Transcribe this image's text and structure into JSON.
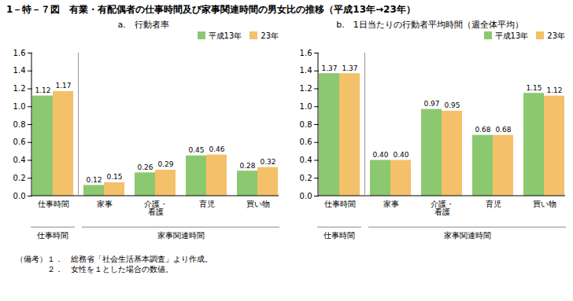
{
  "title": "1－特－７図　有業・有配偶者の仕事時間及び家事関連時間の男女比の推移（平成13年→23年）",
  "chart_data": [
    {
      "type": "bar",
      "subtitle": "a.　行動者率",
      "categories": [
        "仕事時間",
        "家事",
        "介護・\n看護",
        "育児",
        "買い物"
      ],
      "groups": [
        {
          "name": "仕事時間",
          "categories": [
            "仕事時間"
          ]
        },
        {
          "name": "家事関連時間",
          "categories": [
            "家事",
            "介護・\n看護",
            "育児",
            "買い物"
          ]
        }
      ],
      "series": [
        {
          "name": "平成13年",
          "color": "#8cc870",
          "values": [
            1.12,
            0.12,
            0.26,
            0.45,
            0.28
          ],
          "value_labels": [
            "1.12",
            "0.12",
            "0.26",
            "0.45",
            "0.28"
          ]
        },
        {
          "name": "23年",
          "color": "#f5c06a",
          "values": [
            1.17,
            0.15,
            0.29,
            0.46,
            0.32
          ],
          "value_labels": [
            "1.17",
            "0.15",
            "0.29",
            "0.46",
            "0.32"
          ]
        }
      ],
      "ylim": [
        0.0,
        1.6
      ],
      "yticks": [
        {
          "value": 0,
          "label": "0.0"
        },
        0.2,
        0.4,
        0.6,
        0.8,
        {
          "value": 1,
          "label": "1.0"
        },
        1.2,
        1.4,
        1.6
      ],
      "data_labels": true,
      "legend": "upper right",
      "grid": false
    },
    {
      "type": "bar",
      "subtitle": "b.　1日当たりの行動者平均時間（週全体平均）",
      "categories": [
        "仕事時間",
        "家事",
        "介護・\n看護",
        "育児",
        "買い物"
      ],
      "groups": [
        {
          "name": "仕事時間",
          "categories": [
            "仕事時間"
          ]
        },
        {
          "name": "家事関連時間",
          "categories": [
            "家事",
            "介護・\n看護",
            "育児",
            "買い物"
          ]
        }
      ],
      "series": [
        {
          "name": "平成13年",
          "color": "#8cc870",
          "values": [
            1.37,
            0.4,
            0.97,
            0.68,
            1.15
          ],
          "value_labels": [
            "1.37",
            "0.40",
            "0.97",
            "0.68",
            "1.15"
          ]
        },
        {
          "name": "23年",
          "color": "#f5c06a",
          "values": [
            1.37,
            0.4,
            0.95,
            0.68,
            1.12
          ],
          "value_labels": [
            "1.37",
            "0.40",
            "0.95",
            "0.68",
            "1.12"
          ]
        }
      ],
      "ylim": [
        0.0,
        1.6
      ],
      "yticks": [
        {
          "value": 0,
          "label": "0.0"
        },
        0.2,
        0.4,
        0.6,
        0.8,
        {
          "value": 1,
          "label": "1.0"
        },
        1.2,
        1.4,
        1.6
      ],
      "data_labels": true,
      "legend": "upper right",
      "grid": false
    }
  ],
  "annotations": [
    "（備考）１．　総務省「社会生活基本調査」より作成。",
    "　　　　２．　女性を１とした場合の数値。"
  ]
}
